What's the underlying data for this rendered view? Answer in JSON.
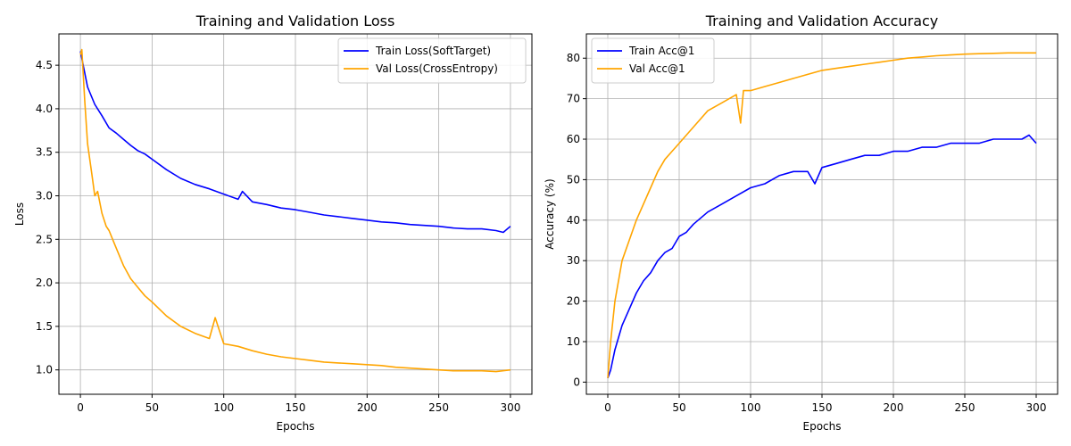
{
  "chart_data": [
    {
      "type": "line",
      "title": "Training and Validation Loss",
      "xlabel": "Epochs",
      "ylabel": "Loss",
      "xlim": [
        -15,
        315
      ],
      "ylim": [
        0.72,
        4.86
      ],
      "xticks": [
        0,
        50,
        100,
        150,
        200,
        250,
        300
      ],
      "yticks": [
        1.0,
        1.5,
        2.0,
        2.5,
        3.0,
        3.5,
        4.0,
        4.5
      ],
      "grid": true,
      "legend_loc": "upper-right",
      "series": [
        {
          "name": "Train Loss(SoftTarget)",
          "color": "#0000ff",
          "x": [
            0,
            5,
            10,
            15,
            20,
            25,
            30,
            35,
            40,
            45,
            50,
            60,
            70,
            80,
            90,
            100,
            110,
            113,
            120,
            130,
            140,
            150,
            160,
            170,
            180,
            190,
            200,
            210,
            220,
            230,
            240,
            250,
            260,
            270,
            280,
            290,
            295,
            300
          ],
          "y": [
            4.66,
            4.25,
            4.05,
            3.92,
            3.78,
            3.72,
            3.65,
            3.58,
            3.52,
            3.48,
            3.42,
            3.3,
            3.2,
            3.13,
            3.08,
            3.02,
            2.96,
            3.05,
            2.93,
            2.9,
            2.86,
            2.84,
            2.81,
            2.78,
            2.76,
            2.74,
            2.72,
            2.7,
            2.69,
            2.67,
            2.66,
            2.65,
            2.63,
            2.62,
            2.62,
            2.6,
            2.58,
            2.65
          ]
        },
        {
          "name": "Val Loss(CrossEntropy)",
          "color": "#ffa500",
          "x": [
            0,
            1,
            3,
            5,
            8,
            10,
            12,
            15,
            18,
            20,
            25,
            30,
            35,
            40,
            45,
            50,
            60,
            70,
            80,
            90,
            94,
            100,
            110,
            120,
            130,
            140,
            150,
            160,
            170,
            180,
            190,
            200,
            210,
            220,
            230,
            240,
            250,
            260,
            270,
            280,
            290,
            300
          ],
          "y": [
            4.62,
            4.68,
            4.1,
            3.6,
            3.25,
            3.0,
            3.05,
            2.8,
            2.65,
            2.6,
            2.4,
            2.2,
            2.05,
            1.95,
            1.85,
            1.78,
            1.62,
            1.5,
            1.42,
            1.36,
            1.6,
            1.3,
            1.27,
            1.22,
            1.18,
            1.15,
            1.13,
            1.11,
            1.09,
            1.08,
            1.07,
            1.06,
            1.05,
            1.03,
            1.02,
            1.01,
            1.0,
            0.99,
            0.99,
            0.99,
            0.98,
            1.0
          ]
        }
      ]
    },
    {
      "type": "line",
      "title": "Training and Validation Accuracy",
      "xlabel": "Epochs",
      "ylabel": "Accuracy (%)",
      "xlim": [
        -15,
        315
      ],
      "ylim": [
        -3,
        86
      ],
      "xticks": [
        0,
        50,
        100,
        150,
        200,
        250,
        300
      ],
      "yticks": [
        0,
        10,
        20,
        30,
        40,
        50,
        60,
        70,
        80
      ],
      "grid": true,
      "legend_loc": "upper-left",
      "series": [
        {
          "name": "Train Acc@1",
          "color": "#0000ff",
          "x": [
            0,
            2,
            5,
            10,
            15,
            20,
            25,
            30,
            35,
            40,
            45,
            50,
            55,
            60,
            70,
            80,
            90,
            100,
            110,
            120,
            130,
            140,
            145,
            150,
            160,
            170,
            180,
            190,
            200,
            210,
            220,
            230,
            240,
            250,
            260,
            270,
            280,
            290,
            295,
            300
          ],
          "y": [
            1,
            3,
            8,
            14,
            18,
            22,
            25,
            27,
            30,
            32,
            33,
            36,
            37,
            39,
            42,
            44,
            46,
            48,
            49,
            51,
            52,
            52,
            49,
            53,
            54,
            55,
            56,
            56,
            57,
            57,
            58,
            58,
            59,
            59,
            59,
            60,
            60,
            60,
            61,
            59
          ]
        },
        {
          "name": "Val Acc@1",
          "color": "#ffa500",
          "x": [
            0,
            2,
            5,
            8,
            10,
            15,
            20,
            25,
            30,
            35,
            40,
            45,
            50,
            55,
            60,
            70,
            80,
            90,
            93,
            95,
            100,
            110,
            120,
            130,
            140,
            150,
            160,
            170,
            180,
            190,
            200,
            210,
            220,
            230,
            240,
            250,
            260,
            270,
            280,
            290,
            300
          ],
          "y": [
            1,
            10,
            20,
            26,
            30,
            35,
            40,
            44,
            48,
            52,
            55,
            57,
            59,
            61,
            63,
            67,
            69,
            71,
            64,
            72,
            72,
            73,
            74,
            75,
            76,
            77,
            77.5,
            78,
            78.5,
            79,
            79.5,
            80,
            80.3,
            80.6,
            80.8,
            81,
            81.1,
            81.2,
            81.3,
            81.3,
            81.3
          ]
        }
      ]
    }
  ]
}
